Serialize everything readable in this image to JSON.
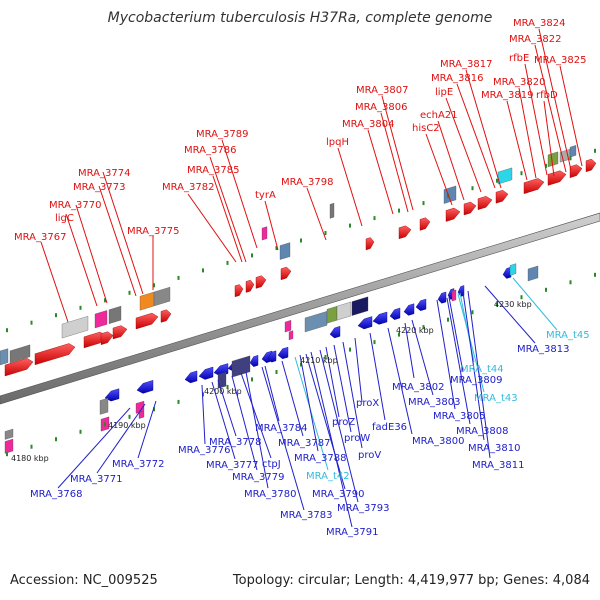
{
  "title": "Mycobacterium tuberculosis H37Ra, complete genome",
  "footer": {
    "accession": "Accession: NC_009525",
    "topology": "Topology: circular; Length: 4,419,977 bp; Genes: 4,084"
  },
  "colors": {
    "forward_gene": "#ee1c1c",
    "reverse_gene": "#1919d9",
    "trna": "#33bbdd",
    "backbone": "#8a8a8a",
    "tick": "#2a8a2a"
  },
  "scale_labels": [
    "4180 kbp",
    "4190 kbp",
    "4200 kbp",
    "4210 kbp",
    "4220 kbp",
    "4230 kbp"
  ],
  "upper_labels": [
    "MRA_3767",
    "ligC",
    "MRA_3770",
    "MRA_3773",
    "MRA_3774",
    "MRA_3775",
    "MRA_3782",
    "MRA_3785",
    "MRA_3786",
    "MRA_3789",
    "tyrA",
    "MRA_3798",
    "lpqH",
    "MRA_3804",
    "MRA_3806",
    "MRA_3807",
    "hisC2",
    "echA21",
    "lipE",
    "MRA_3816",
    "MRA_3817",
    "MRA_3819",
    "MRA_3820",
    "rfbD",
    "rfbE",
    "MRA_3822",
    "MRA_3824",
    "MRA_3825"
  ],
  "lower_labels": [
    "MRA_3768",
    "MRA_3771",
    "MRA_3772",
    "MRA_3776",
    "MRA_3777",
    "MRA_3778",
    "MRA_3779",
    "ctpJ",
    "MRA_3780",
    "MRA_3783",
    "MRA_3784",
    "MRA_3787",
    "MRA_t42",
    "MRA_3788",
    "MRA_3790",
    "MRA_3791",
    "MRA_3793",
    "proZ",
    "proW",
    "proV",
    "proX",
    "fadE36",
    "MRA_3800",
    "MRA_3802",
    "MRA_3803",
    "MRA_3805",
    "MRA_3808",
    "MRA_3809",
    "MRA_t43",
    "MRA_t44",
    "MRA_3810",
    "MRA_3811",
    "MRA_3813",
    "MRA_t45"
  ]
}
